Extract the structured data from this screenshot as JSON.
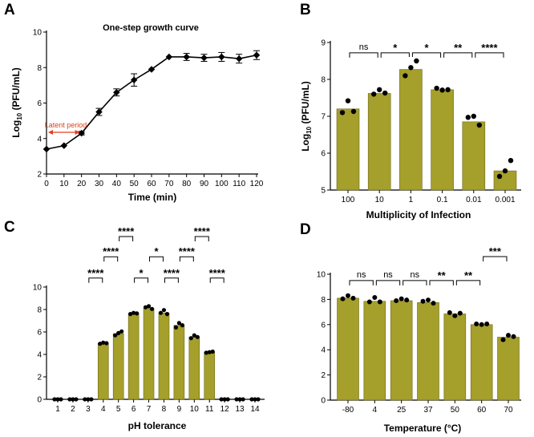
{
  "colors": {
    "bar": "#a59f2b",
    "bar_edge": "#6e6a1c",
    "line": "#000000",
    "arrow": "#e0401a",
    "dot": "#000000"
  },
  "chart_data": [
    {
      "panel": "A",
      "type": "line",
      "title": "One-step growth curve",
      "xlabel": "Time  (min)",
      "ylabel_main": "Log",
      "ylabel_sub": "10",
      "ylabel_rest": " (PFU/mL)",
      "xlim": [
        0,
        120
      ],
      "ylim": [
        2,
        10
      ],
      "xticks": [
        0,
        10,
        20,
        30,
        40,
        50,
        60,
        70,
        80,
        90,
        100,
        110,
        120
      ],
      "yticks": [
        2,
        4,
        6,
        8,
        10
      ],
      "x": [
        0,
        10,
        20,
        30,
        40,
        50,
        60,
        70,
        80,
        90,
        100,
        110,
        120
      ],
      "y": [
        3.4,
        3.6,
        4.3,
        5.5,
        6.6,
        7.3,
        7.9,
        8.6,
        8.6,
        8.55,
        8.6,
        8.5,
        8.7
      ],
      "err": [
        0,
        0,
        0.1,
        0.2,
        0.2,
        0.35,
        0,
        0,
        0.2,
        0.2,
        0.25,
        0.25,
        0.25
      ],
      "annotation": {
        "text": "Latent period",
        "x_from": 0,
        "x_to": 20,
        "y": 4.35
      }
    },
    {
      "panel": "B",
      "type": "bar",
      "xlabel": "Multiplicity of Infection",
      "ylabel_main": "Log",
      "ylabel_sub": "10",
      "ylabel_rest": " (PFU/mL)",
      "ylim": [
        5,
        9
      ],
      "yticks": [
        5,
        6,
        7,
        8,
        9
      ],
      "categories": [
        "100",
        "10",
        "1",
        "0.1",
        "0.01",
        "0.001"
      ],
      "values": [
        7.2,
        7.62,
        8.27,
        7.72,
        6.85,
        5.52
      ],
      "points": [
        [
          7.1,
          7.42,
          7.13
        ],
        [
          7.6,
          7.72,
          7.63
        ],
        [
          8.1,
          8.32,
          8.5
        ],
        [
          7.76,
          7.71,
          7.72
        ],
        [
          6.97,
          7.0,
          6.76
        ],
        [
          5.37,
          5.52,
          5.8
        ]
      ],
      "brackets": [
        {
          "from": 0,
          "to": 1,
          "label": "ns",
          "level": 8.72,
          "bars_top": [
            7.42,
            7.72
          ]
        },
        {
          "from": 1,
          "to": 2,
          "label": "*",
          "level": 8.72,
          "bars_top": [
            7.72,
            8.5
          ]
        },
        {
          "from": 2,
          "to": 3,
          "label": "*",
          "level": 8.72,
          "bars_top": [
            8.5,
            7.76
          ]
        },
        {
          "from": 3,
          "to": 4,
          "label": "**",
          "level": 8.72,
          "bars_top": [
            7.76,
            7.0
          ]
        },
        {
          "from": 4,
          "to": 5,
          "label": "****",
          "level": 8.72,
          "bars_top": [
            7.0,
            5.8
          ]
        }
      ]
    },
    {
      "panel": "C",
      "type": "bar",
      "xlabel": "pH tolerance",
      "ylim": [
        0,
        10
      ],
      "yticks": [
        0,
        2,
        4,
        6,
        8,
        10
      ],
      "categories": [
        "1",
        "2",
        "3",
        "4",
        "5",
        "6",
        "7",
        "8",
        "9",
        "10",
        "11",
        "12",
        "13",
        "14"
      ],
      "values": [
        0,
        0,
        0,
        5.0,
        5.85,
        7.65,
        8.1,
        7.7,
        6.6,
        5.55,
        4.2,
        0,
        0,
        0
      ],
      "points": [
        [
          0,
          0,
          0
        ],
        [
          0,
          0,
          0
        ],
        [
          0,
          0,
          0
        ],
        [
          4.95,
          5.05,
          5.0
        ],
        [
          5.7,
          5.9,
          6.05
        ],
        [
          7.6,
          7.7,
          7.65
        ],
        [
          8.2,
          8.3,
          8.05
        ],
        [
          7.7,
          7.95,
          7.6
        ],
        [
          6.4,
          6.8,
          6.6
        ],
        [
          5.45,
          5.7,
          5.55
        ],
        [
          4.15,
          4.2,
          4.25
        ],
        [
          0,
          0,
          0
        ],
        [
          0,
          0,
          0
        ],
        [
          0,
          0,
          0
        ]
      ],
      "brackets": [
        {
          "from": 2,
          "to": 3,
          "label": "****",
          "level": 10.8,
          "bars_top": [
            0,
            5.05
          ]
        },
        {
          "from": 3,
          "to": 4,
          "label": "****",
          "level": 12.7,
          "bars_top": [
            5.05,
            6.05
          ]
        },
        {
          "from": 4,
          "to": 5,
          "label": "****",
          "level": 14.5,
          "bars_top": [
            6.05,
            7.7
          ]
        },
        {
          "from": 5,
          "to": 6,
          "label": "*",
          "level": 10.8,
          "bars_top": [
            7.7,
            8.3
          ]
        },
        {
          "from": 6,
          "to": 7,
          "label": "*",
          "level": 12.7,
          "bars_top": [
            8.3,
            7.95
          ]
        },
        {
          "from": 7,
          "to": 8,
          "label": "****",
          "level": 10.8,
          "bars_top": [
            7.95,
            6.8
          ]
        },
        {
          "from": 8,
          "to": 9,
          "label": "****",
          "level": 12.7,
          "bars_top": [
            6.8,
            5.7
          ]
        },
        {
          "from": 9,
          "to": 10,
          "label": "****",
          "level": 14.5,
          "bars_top": [
            5.7,
            4.25
          ]
        },
        {
          "from": 10,
          "to": 11,
          "label": "****",
          "level": 10.8,
          "bars_top": [
            4.25,
            0
          ]
        }
      ]
    },
    {
      "panel": "D",
      "type": "bar",
      "xlabel": "Temperature  (°C)",
      "ylim": [
        0,
        10
      ],
      "yticks": [
        0,
        2,
        4,
        6,
        8,
        10
      ],
      "categories": [
        "-80",
        "4",
        "25",
        "37",
        "50",
        "60",
        "70"
      ],
      "values": [
        8.1,
        7.85,
        7.9,
        7.75,
        6.85,
        6.0,
        5.0
      ],
      "points": [
        [
          8.05,
          8.3,
          8.1
        ],
        [
          7.8,
          8.15,
          7.8
        ],
        [
          7.9,
          8.05,
          7.95
        ],
        [
          7.85,
          7.95,
          7.7
        ],
        [
          6.95,
          6.7,
          6.9
        ],
        [
          6.05,
          6.0,
          6.05
        ],
        [
          4.8,
          5.15,
          5.05
        ]
      ],
      "brackets": [
        {
          "from": 0,
          "to": 1,
          "label": "ns",
          "level": 9.5,
          "bars_top": [
            8.3,
            8.15
          ]
        },
        {
          "from": 1,
          "to": 2,
          "label": "ns",
          "level": 9.5,
          "bars_top": [
            8.15,
            8.05
          ]
        },
        {
          "from": 2,
          "to": 3,
          "label": "ns",
          "level": 9.5,
          "bars_top": [
            8.05,
            7.95
          ]
        },
        {
          "from": 3,
          "to": 4,
          "label": "**",
          "level": 9.5,
          "bars_top": [
            7.95,
            6.95
          ]
        },
        {
          "from": 4,
          "to": 5,
          "label": "**",
          "level": 9.5,
          "bars_top": [
            6.95,
            6.05
          ]
        },
        {
          "from": 5,
          "to": 6,
          "label": "***",
          "level": 11.4,
          "bars_top": [
            6.05,
            5.15
          ]
        }
      ]
    }
  ]
}
